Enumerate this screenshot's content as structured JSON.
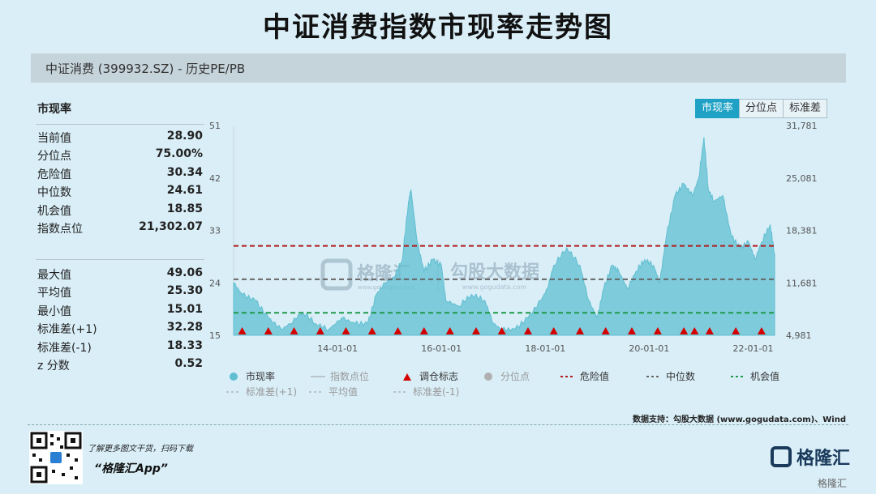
{
  "title": "中证消费指数市现率走势图",
  "header": "中证消费 (399932.SZ) - 历史PE/PB",
  "stats_title": "市现率",
  "stats_group1": [
    {
      "label": "当前值",
      "value": "28.90"
    },
    {
      "label": "分位点",
      "value": "75.00%"
    },
    {
      "label": "危险值",
      "value": "30.34"
    },
    {
      "label": "中位数",
      "value": "24.61"
    },
    {
      "label": "机会值",
      "value": "18.85"
    },
    {
      "label": "指数点位",
      "value": "21,302.07"
    }
  ],
  "stats_group2": [
    {
      "label": "最大值",
      "value": "49.06"
    },
    {
      "label": "平均值",
      "value": "25.30"
    },
    {
      "label": "最小值",
      "value": "15.01"
    },
    {
      "label": "标准差(+1)",
      "value": "32.28"
    },
    {
      "label": "标准差(-1)",
      "value": "18.33"
    },
    {
      "label": "z 分数",
      "value": "0.52"
    }
  ],
  "tabs": [
    "市现率",
    "分位点",
    "标准差"
  ],
  "legend_row1": [
    {
      "label": "市现率",
      "kind": "dot",
      "color": "#5fbfd1",
      "dim": false
    },
    {
      "label": "指数点位",
      "kind": "line",
      "color": "#b8c4ca",
      "dim": true
    },
    {
      "label": "调仓标志",
      "kind": "triangle",
      "color": "#d40000",
      "dim": false
    },
    {
      "label": "分位点",
      "kind": "dot",
      "color": "#b0b0b0",
      "dim": true
    },
    {
      "label": "危险值",
      "kind": "dash",
      "color": "#b01c1c",
      "dim": false
    },
    {
      "label": "中位数",
      "kind": "dash",
      "color": "#666666",
      "dim": false
    },
    {
      "label": "机会值",
      "kind": "dash",
      "color": "#1e9a4a",
      "dim": false
    }
  ],
  "legend_row2": [
    {
      "label": "标准差(+1)",
      "kind": "dash",
      "color": "#b8c4ca",
      "dim": true
    },
    {
      "label": "平均值",
      "kind": "dash",
      "color": "#b8c4ca",
      "dim": true
    },
    {
      "label": "标准差(-1)",
      "kind": "dash",
      "color": "#b8c4ca",
      "dim": true
    }
  ],
  "watermark": {
    "cn1": "格隆汇",
    "en1": "www.gelonghui.com",
    "cn2": "勾股大数据",
    "en2": "www.gogudata.com"
  },
  "source": "数据支持：勾股大数据 (www.gogudata.com)、Wind",
  "footer_note": "了解更多图文干货，扫码下载",
  "footer_app": "“格隆汇App”",
  "brand": "格隆汇",
  "brand_small": "格隆汇",
  "chart_data": {
    "type": "area",
    "y_left": {
      "ticks": [
        15,
        24,
        33,
        42,
        51
      ],
      "range": [
        15,
        51
      ]
    },
    "y_right": {
      "ticks": [
        "4,981",
        "11,681",
        "18,381",
        "25,081",
        "31,781"
      ]
    },
    "x_ticks": [
      "14-01-01",
      "16-01-01",
      "18-01-01",
      "20-01-01",
      "22-01-01"
    ],
    "x_range": [
      "2012-01-01",
      "2022-06-01"
    ],
    "series": [
      {
        "name": "市现率",
        "color": "#5fbfd1",
        "x": [
          "2012-01-01",
          "2012-03-01",
          "2012-06-01",
          "2012-09-01",
          "2012-12-01",
          "2013-02-01",
          "2013-05-01",
          "2013-08-01",
          "2013-11-01",
          "2014-02-01",
          "2014-05-01",
          "2014-08-01",
          "2014-10-01",
          "2014-12-01",
          "2015-02-01",
          "2015-04-01",
          "2015-05-15",
          "2015-06-01",
          "2015-07-15",
          "2015-09-01",
          "2015-11-01",
          "2016-01-01",
          "2016-02-01",
          "2016-05-01",
          "2016-08-01",
          "2016-11-01",
          "2017-01-01",
          "2017-03-01",
          "2017-06-01",
          "2017-09-01",
          "2017-12-01",
          "2018-01-15",
          "2018-03-01",
          "2018-06-01",
          "2018-09-01",
          "2018-11-01",
          "2019-01-01",
          "2019-02-15",
          "2019-04-15",
          "2019-06-01",
          "2019-08-01",
          "2019-10-01",
          "2019-12-01",
          "2020-02-01",
          "2020-03-15",
          "2020-05-01",
          "2020-07-01",
          "2020-09-01",
          "2020-11-01",
          "2020-12-15",
          "2021-01-20",
          "2021-02-20",
          "2021-04-01",
          "2021-06-01",
          "2021-08-01",
          "2021-10-01",
          "2021-12-01",
          "2022-01-15",
          "2022-03-01",
          "2022-05-01",
          "2022-06-01"
        ],
        "y": [
          24,
          22,
          21,
          18,
          16,
          17,
          19,
          17,
          16,
          18,
          17,
          17,
          22,
          24,
          25,
          28,
          38,
          40,
          31,
          26,
          28,
          27,
          21,
          20,
          22,
          21,
          17,
          16,
          16,
          18,
          21,
          23,
          27,
          30,
          27,
          21,
          18,
          23,
          27,
          26,
          23,
          26,
          28,
          27,
          24,
          32,
          39,
          41,
          39,
          42,
          49,
          40,
          38,
          39,
          32,
          30,
          31,
          28,
          31,
          34,
          28.9
        ]
      }
    ],
    "reference_lines": [
      {
        "name": "危险值",
        "value": 30.34,
        "color": "#b01c1c"
      },
      {
        "name": "中位数",
        "value": 24.61,
        "color": "#666666"
      },
      {
        "name": "机会值",
        "value": 18.85,
        "color": "#1e9a4a"
      }
    ],
    "markers": {
      "name": "调仓标志",
      "color": "#d40000",
      "x": [
        "2012-03-01",
        "2012-09-01",
        "2013-03-01",
        "2013-09-01",
        "2014-03-01",
        "2014-09-01",
        "2015-03-01",
        "2015-09-01",
        "2016-03-01",
        "2016-09-01",
        "2017-03-01",
        "2017-09-01",
        "2018-03-01",
        "2018-09-01",
        "2019-03-01",
        "2019-09-01",
        "2020-03-01",
        "2020-09-01",
        "2020-11-15",
        "2021-03-01",
        "2021-09-01",
        "2022-03-01"
      ]
    },
    "legend_placement": "bottom",
    "grid": false
  }
}
